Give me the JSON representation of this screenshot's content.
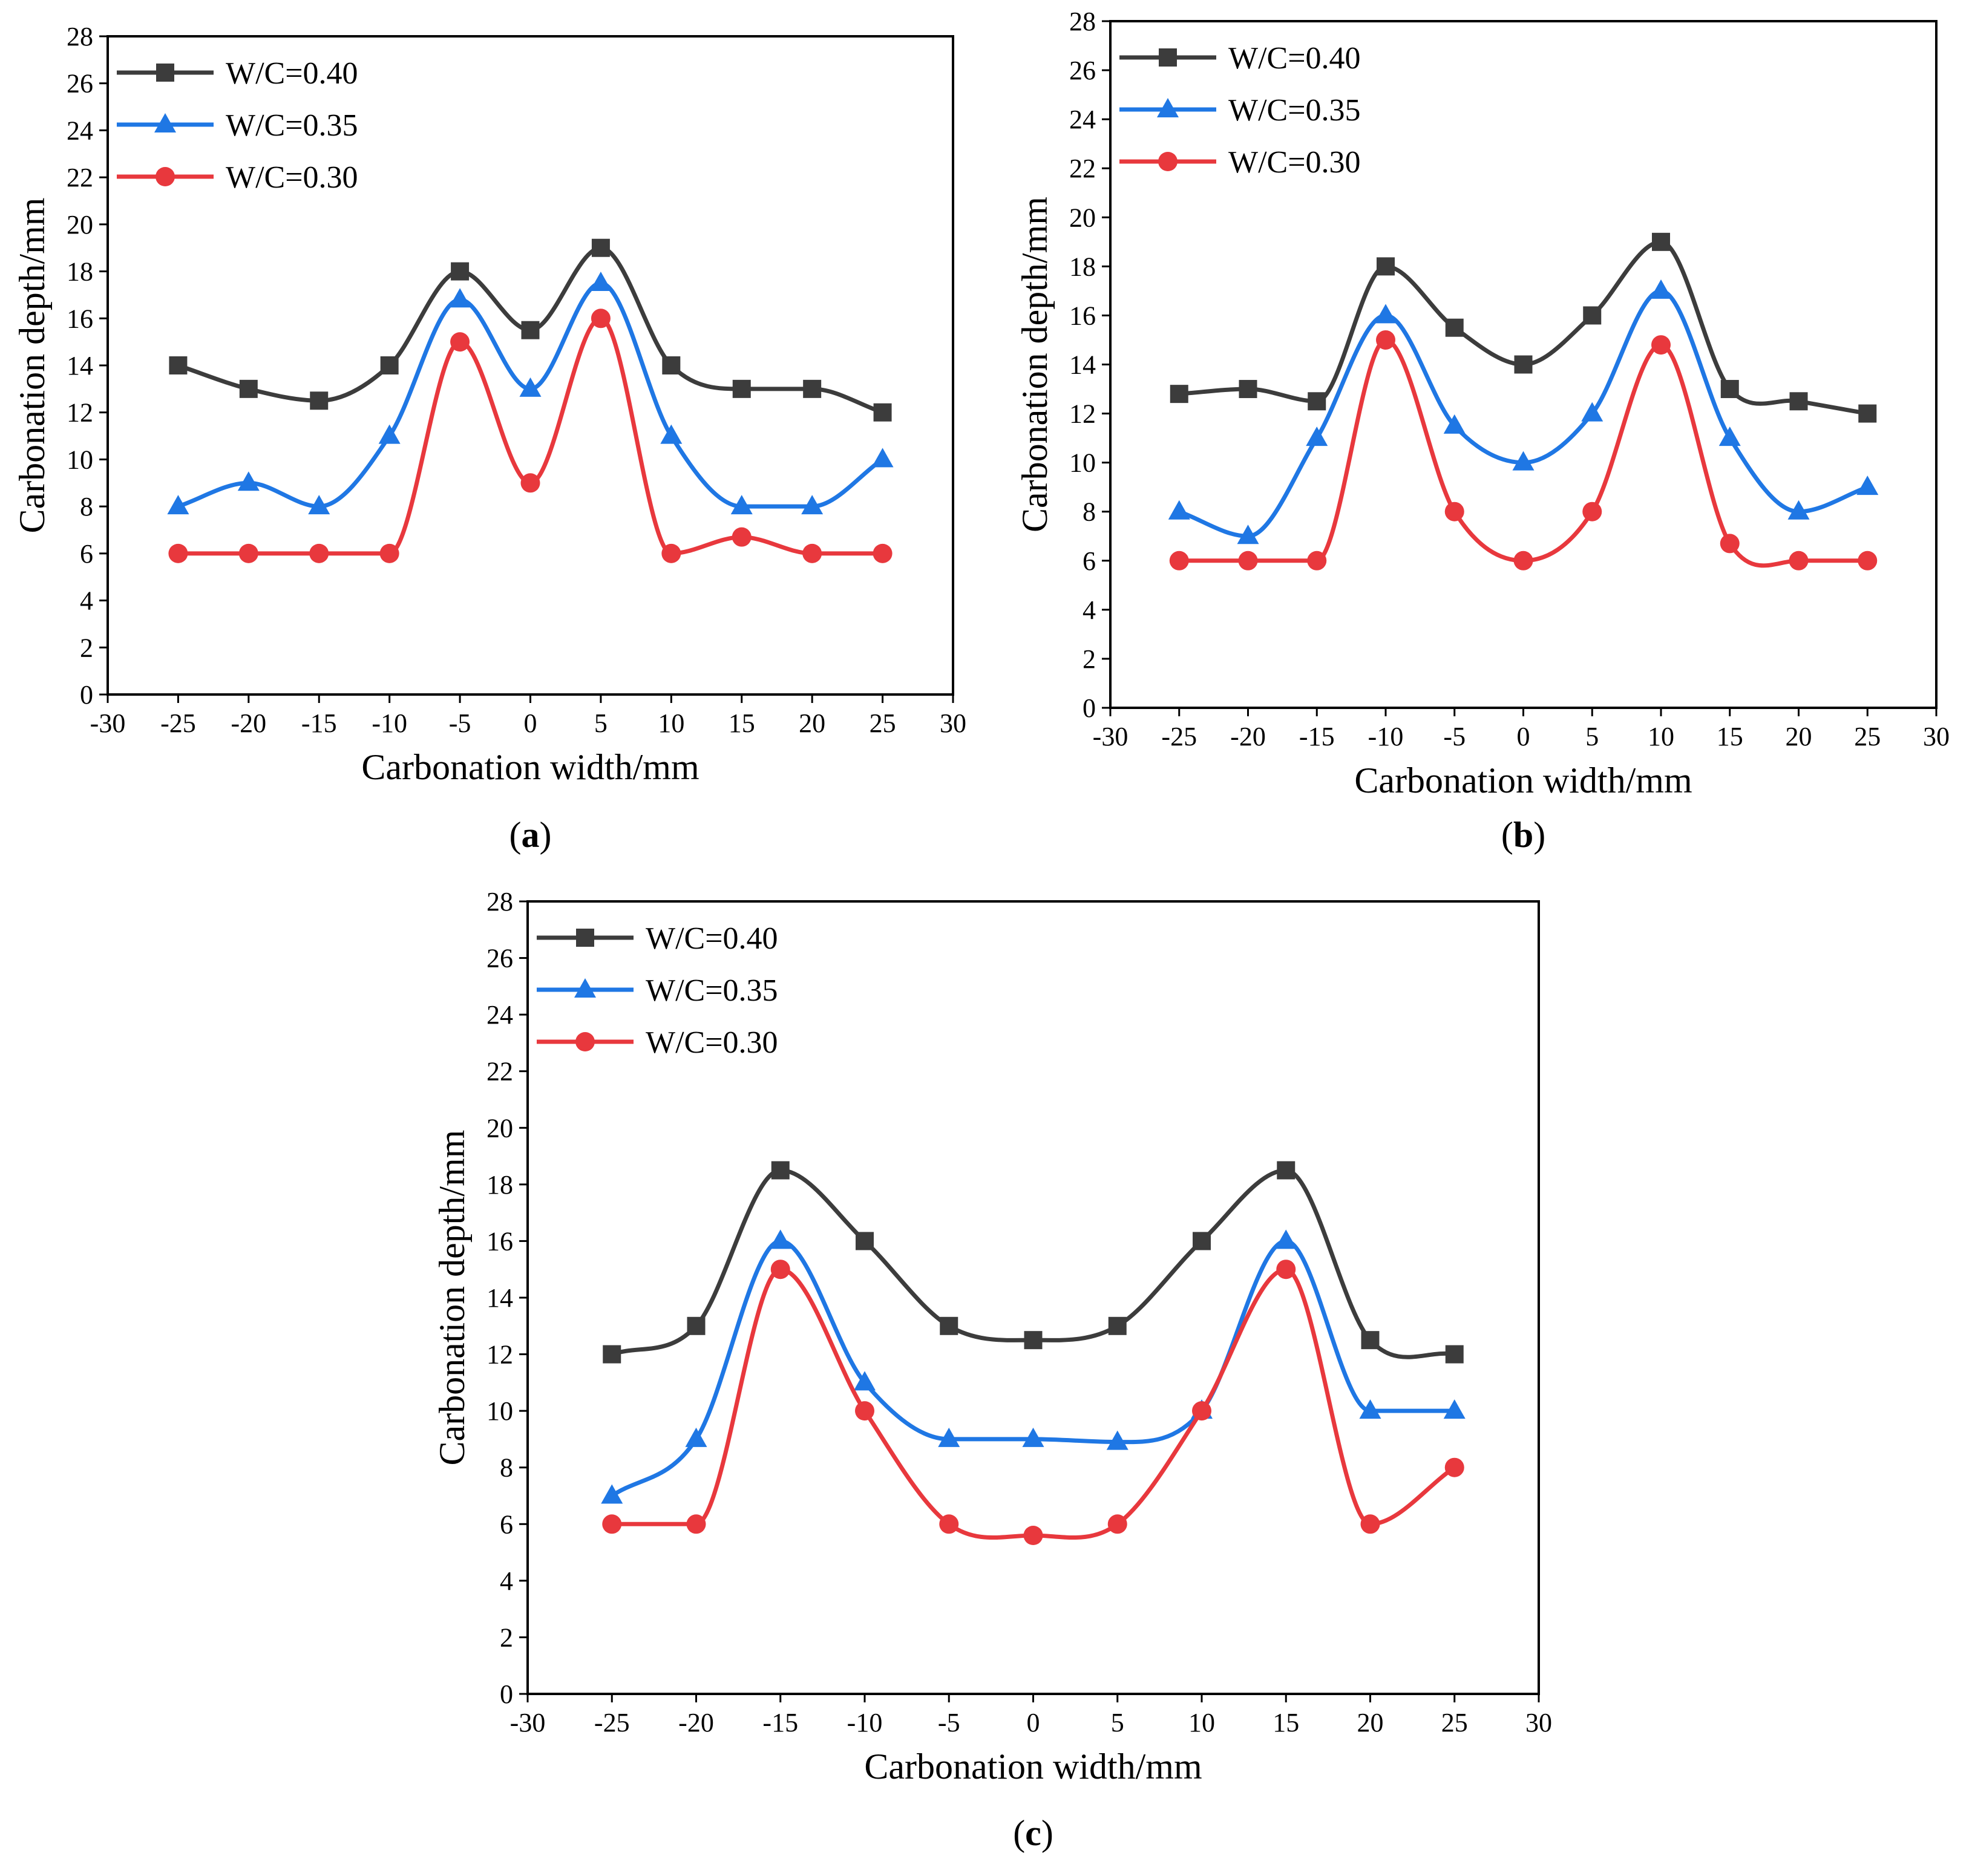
{
  "chart_data": [
    {
      "type": "line",
      "panel_label": "a",
      "xlabel": "Carbonation width/mm",
      "ylabel": "Carbonation depth/mm",
      "xlim": [
        -30,
        30
      ],
      "ylim": [
        0,
        28
      ],
      "xticks": [
        -30,
        -25,
        -20,
        -15,
        -10,
        -5,
        0,
        5,
        10,
        15,
        20,
        25,
        30
      ],
      "yticks": [
        0,
        2,
        4,
        6,
        8,
        10,
        12,
        14,
        16,
        18,
        20,
        22,
        24,
        26,
        28
      ],
      "x": [
        -25,
        -20,
        -15,
        -10,
        -5,
        0,
        5,
        10,
        15,
        20,
        25
      ],
      "legend_position": "top-left",
      "series": [
        {
          "name": "W/C=0.40",
          "color": "#3c3c3c",
          "marker": "square",
          "values": [
            14,
            13,
            12.5,
            14,
            18,
            15.5,
            19,
            14,
            13,
            13,
            12
          ]
        },
        {
          "name": "W/C=0.35",
          "color": "#1f77e4",
          "marker": "triangle",
          "values": [
            8,
            9,
            8,
            11,
            16.8,
            13,
            17.5,
            11,
            8,
            8,
            10
          ]
        },
        {
          "name": "W/C=0.30",
          "color": "#e8383d",
          "marker": "circle",
          "values": [
            6,
            6,
            6,
            6,
            15,
            9,
            16,
            6,
            6.7,
            6,
            6
          ]
        }
      ]
    },
    {
      "type": "line",
      "panel_label": "b",
      "xlabel": "Carbonation width/mm",
      "ylabel": "Carbonation depth/mm",
      "xlim": [
        -30,
        30
      ],
      "ylim": [
        0,
        28
      ],
      "xticks": [
        -30,
        -25,
        -20,
        -15,
        -10,
        -5,
        0,
        5,
        10,
        15,
        20,
        25,
        30
      ],
      "yticks": [
        0,
        2,
        4,
        6,
        8,
        10,
        12,
        14,
        16,
        18,
        20,
        22,
        24,
        26,
        28
      ],
      "x": [
        -25,
        -20,
        -15,
        -10,
        -5,
        0,
        5,
        10,
        15,
        20,
        25
      ],
      "legend_position": "top-left",
      "series": [
        {
          "name": "W/C=0.40",
          "color": "#3c3c3c",
          "marker": "square",
          "values": [
            12.8,
            13,
            12.5,
            18,
            15.5,
            14,
            16,
            19,
            13,
            12.5,
            12
          ]
        },
        {
          "name": "W/C=0.35",
          "color": "#1f77e4",
          "marker": "triangle",
          "values": [
            8,
            7,
            11,
            16,
            11.5,
            10,
            12,
            17,
            11,
            8,
            9
          ]
        },
        {
          "name": "W/C=0.30",
          "color": "#e8383d",
          "marker": "circle",
          "values": [
            6,
            6,
            6,
            15,
            8,
            6,
            8,
            14.8,
            6.7,
            6,
            6
          ]
        }
      ]
    },
    {
      "type": "line",
      "panel_label": "c",
      "xlabel": "Carbonation width/mm",
      "ylabel": "Carbonation depth/mm",
      "xlim": [
        -30,
        30
      ],
      "ylim": [
        0,
        28
      ],
      "xticks": [
        -30,
        -25,
        -20,
        -15,
        -10,
        -5,
        0,
        5,
        10,
        15,
        20,
        25,
        30
      ],
      "yticks": [
        0,
        2,
        4,
        6,
        8,
        10,
        12,
        14,
        16,
        18,
        20,
        22,
        24,
        26,
        28
      ],
      "x": [
        -25,
        -20,
        -15,
        -10,
        -5,
        0,
        5,
        10,
        15,
        20,
        25
      ],
      "legend_position": "top-left",
      "series": [
        {
          "name": "W/C=0.40",
          "color": "#3c3c3c",
          "marker": "square",
          "values": [
            12,
            13,
            18.5,
            16,
            13,
            12.5,
            13,
            16,
            18.5,
            12.5,
            12
          ]
        },
        {
          "name": "W/C=0.35",
          "color": "#1f77e4",
          "marker": "triangle",
          "values": [
            7,
            9,
            16,
            11,
            9,
            9,
            8.9,
            10,
            16,
            10,
            10
          ]
        },
        {
          "name": "W/C=0.30",
          "color": "#e8383d",
          "marker": "circle",
          "values": [
            6,
            6,
            15,
            10,
            6,
            5.6,
            6,
            10,
            15,
            6,
            8
          ]
        }
      ]
    }
  ]
}
